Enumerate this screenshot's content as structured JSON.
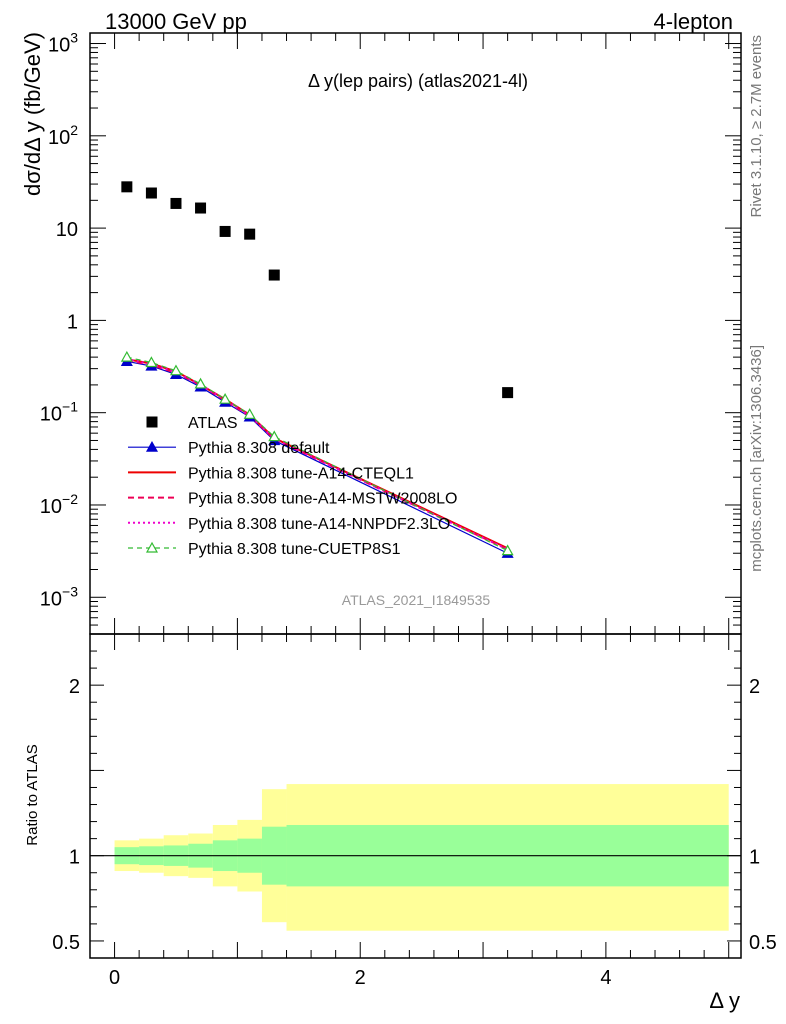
{
  "header": {
    "left": "13000 GeV pp",
    "right": "4-lepton"
  },
  "side_labels": {
    "rivet": "Rivet 3.1.10, ≥ 2.7M events",
    "mcplots": "mcplots.cern.ch [arXiv:1306.3436]"
  },
  "watermark": "ATLAS_2021_I1849535",
  "colors": {
    "data": "#000000",
    "default": "#0000cc",
    "cteql1": "#ee0000",
    "mstw": "#ee0055",
    "nnpdf": "#ee00cc",
    "cuetp8s1": "#33bb33",
    "band_inner": "#99ff99",
    "band_outer": "#ffff99"
  },
  "chart_data": [
    {
      "type": "scatter",
      "title": "Δ y(lep pairs) (atlas2021-4l)",
      "ylabel": "dσ/dΔ y (fb/GeV)",
      "xlabel": "Δ y",
      "xlim": [
        -0.2,
        5.1
      ],
      "ylim": [
        0.0004,
        1300
      ],
      "y_scale": "log",
      "y_ticks": [
        {
          "value": 0.001,
          "base": "10",
          "exp": "−3"
        },
        {
          "value": 0.01,
          "base": "10",
          "exp": "−2"
        },
        {
          "value": 0.1,
          "base": "10",
          "exp": "−1"
        },
        {
          "value": 1,
          "base": "1",
          "exp": ""
        },
        {
          "value": 10,
          "base": "10",
          "exp": ""
        },
        {
          "value": 100,
          "base": "10",
          "exp": "2"
        },
        {
          "value": 1000,
          "base": "10",
          "exp": "3"
        }
      ],
      "legend_position": "bottom-left",
      "series": [
        {
          "name": "ATLAS",
          "style": "data",
          "x": [
            0.1,
            0.3,
            0.5,
            0.7,
            0.9,
            1.1,
            1.3,
            3.2
          ],
          "y": [
            28,
            24,
            18.5,
            16.5,
            9.2,
            8.6,
            3.1,
            0.165
          ]
        },
        {
          "name": "Pythia 8.308 default",
          "style": "default",
          "x": [
            0.1,
            0.3,
            0.5,
            0.7,
            0.9,
            1.1,
            1.3,
            3.2
          ],
          "y": [
            0.36,
            0.32,
            0.26,
            0.19,
            0.13,
            0.09,
            0.05,
            0.003
          ]
        },
        {
          "name": "Pythia 8.308 tune-A14-CTEQL1",
          "style": "cteql1",
          "x": [
            0.1,
            0.3,
            0.5,
            0.7,
            0.9,
            1.1,
            1.3,
            3.2
          ],
          "y": [
            0.38,
            0.34,
            0.28,
            0.2,
            0.14,
            0.095,
            0.053,
            0.0034
          ]
        },
        {
          "name": "Pythia 8.308 tune-A14-MSTW2008LO",
          "style": "mstw",
          "x": [
            0.1,
            0.3,
            0.5,
            0.7,
            0.9,
            1.1,
            1.3,
            3.2
          ],
          "y": [
            0.37,
            0.33,
            0.27,
            0.2,
            0.135,
            0.092,
            0.052,
            0.0033
          ]
        },
        {
          "name": "Pythia 8.308 tune-A14-NNPDF2.3LO",
          "style": "nnpdf",
          "x": [
            0.1,
            0.3,
            0.5,
            0.7,
            0.9,
            1.1,
            1.3,
            3.2
          ],
          "y": [
            0.38,
            0.335,
            0.275,
            0.2,
            0.138,
            0.093,
            0.052,
            0.0033
          ]
        },
        {
          "name": "Pythia 8.308 tune-CUETP8S1",
          "style": "cuetp8s1",
          "x": [
            0.1,
            0.3,
            0.5,
            0.7,
            0.9,
            1.1,
            1.3,
            3.2
          ],
          "y": [
            0.4,
            0.35,
            0.285,
            0.205,
            0.14,
            0.096,
            0.055,
            0.0032
          ]
        }
      ]
    },
    {
      "type": "area",
      "ylabel": "Ratio to ATLAS",
      "xlabel": "Δ y",
      "xlim": [
        -0.2,
        5.1
      ],
      "ylim": [
        0.4,
        2.3
      ],
      "y_ticks": [
        0.5,
        1,
        2
      ],
      "x_ticks": [
        0,
        2,
        4
      ],
      "reference_line": 1,
      "bins": [
        {
          "lo": 0.0,
          "hi": 0.2,
          "inner": [
            0.95,
            1.05
          ],
          "outer": [
            0.91,
            1.09
          ]
        },
        {
          "lo": 0.2,
          "hi": 0.4,
          "inner": [
            0.945,
            1.055
          ],
          "outer": [
            0.9,
            1.1
          ]
        },
        {
          "lo": 0.4,
          "hi": 0.6,
          "inner": [
            0.94,
            1.06
          ],
          "outer": [
            0.88,
            1.12
          ]
        },
        {
          "lo": 0.6,
          "hi": 0.8,
          "inner": [
            0.93,
            1.07
          ],
          "outer": [
            0.87,
            1.13
          ]
        },
        {
          "lo": 0.8,
          "hi": 1.0,
          "inner": [
            0.91,
            1.09
          ],
          "outer": [
            0.82,
            1.18
          ]
        },
        {
          "lo": 1.0,
          "hi": 1.2,
          "inner": [
            0.9,
            1.1
          ],
          "outer": [
            0.79,
            1.21
          ]
        },
        {
          "lo": 1.2,
          "hi": 1.4,
          "inner": [
            0.83,
            1.17
          ],
          "outer": [
            0.61,
            1.39
          ]
        },
        {
          "lo": 1.4,
          "hi": 5.0,
          "inner": [
            0.82,
            1.18
          ],
          "outer": [
            0.56,
            1.42
          ]
        }
      ]
    }
  ]
}
